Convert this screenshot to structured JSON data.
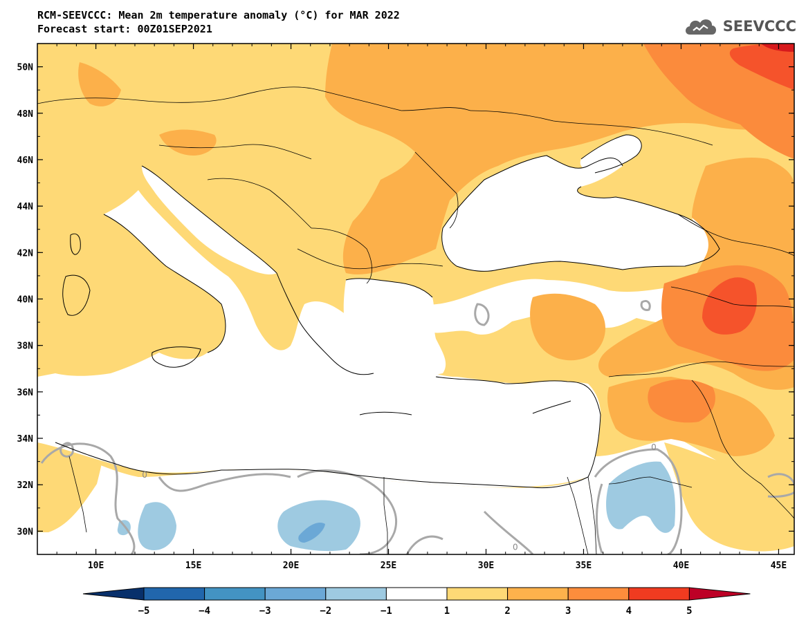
{
  "title": {
    "line1": "RCM-SEEVCCC: Mean 2m temperature anomaly (°C) for MAR 2022",
    "line2": "Forecast start: 00Z01SEP2021"
  },
  "logo": {
    "text": "SEEVCCC",
    "icon": "cloud-icon"
  },
  "map": {
    "lon_range": [
      7,
      45.8
    ],
    "lat_range": [
      29,
      51
    ],
    "lat_ticks": [
      {
        "value": 50,
        "label": "50N"
      },
      {
        "value": 48,
        "label": "48N"
      },
      {
        "value": 46,
        "label": "46N"
      },
      {
        "value": 44,
        "label": "44N"
      },
      {
        "value": 42,
        "label": "42N"
      },
      {
        "value": 40,
        "label": "40N"
      },
      {
        "value": 38,
        "label": "38N"
      },
      {
        "value": 36,
        "label": "36N"
      },
      {
        "value": 34,
        "label": "34N"
      },
      {
        "value": 32,
        "label": "32N"
      },
      {
        "value": 30,
        "label": "30N"
      }
    ],
    "lon_ticks": [
      {
        "value": 10,
        "label": "10E"
      },
      {
        "value": 15,
        "label": "15E"
      },
      {
        "value": 20,
        "label": "20E"
      },
      {
        "value": 25,
        "label": "25E"
      },
      {
        "value": 30,
        "label": "30E"
      },
      {
        "value": 35,
        "label": "35E"
      },
      {
        "value": 40,
        "label": "40E"
      },
      {
        "value": 45,
        "label": "45E"
      }
    ],
    "contour_labels": [
      {
        "lon": 12.5,
        "lat": 32.3,
        "text": "0"
      },
      {
        "lon": 38.6,
        "lat": 33.5,
        "text": "0"
      },
      {
        "lon": 31.5,
        "lat": 29.2,
        "text": "0"
      }
    ]
  },
  "colorbar": {
    "labels": [
      "−5",
      "−4",
      "−3",
      "−2",
      "−1",
      "1",
      "2",
      "3",
      "4",
      "5"
    ],
    "colors": [
      "#08306b",
      "#2166ac",
      "#4393c3",
      "#6ba8d6",
      "#9ecae1",
      "#ffffff",
      "#fed976",
      "#feb24c",
      "#fd8d3c",
      "#f03b20",
      "#bd0026"
    ]
  },
  "colors": {
    "land_base": "#fed976",
    "anomaly_2_3": "#fcb04a",
    "anomaly_3_4": "#fb8b3c",
    "anomaly_4_5": "#f5532b",
    "anomaly_above_5": "#d7191c",
    "anomaly_neg_1_2": "#9ecae1",
    "anomaly_neg_2_3": "#6ba8d6",
    "sea": "#ffffff",
    "contour_zero": "#a8a8a8"
  }
}
